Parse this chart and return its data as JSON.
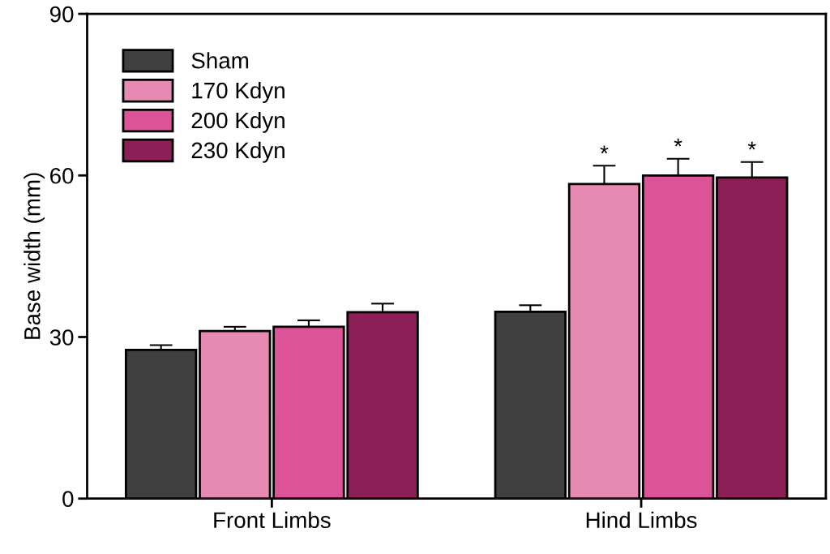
{
  "chart_data": {
    "type": "bar",
    "ylabel": "Base width (mm)",
    "categories": [
      "Front Limbs",
      "Hind Limbs"
    ],
    "series": [
      {
        "name": "Sham",
        "color": "#404040",
        "values": [
          27.6,
          34.7
        ],
        "errors": [
          0.9,
          1.2
        ]
      },
      {
        "name": "170 Kdyn",
        "color": "#e68ab4",
        "values": [
          31.1,
          58.4
        ],
        "errors": [
          0.8,
          3.4
        ]
      },
      {
        "name": "200 Kdyn",
        "color": "#dc5497",
        "values": [
          31.9,
          60.0
        ],
        "errors": [
          1.2,
          3.1
        ]
      },
      {
        "name": "230 Kdyn",
        "color": "#8c1f55",
        "values": [
          34.6,
          59.6
        ],
        "errors": [
          1.6,
          2.9
        ]
      }
    ],
    "annotations": [
      "*",
      "*",
      "*"
    ],
    "ylim": [
      0,
      90
    ],
    "yticks": [
      0,
      30,
      60,
      90
    ],
    "legend": "top left",
    "grid": false
  }
}
